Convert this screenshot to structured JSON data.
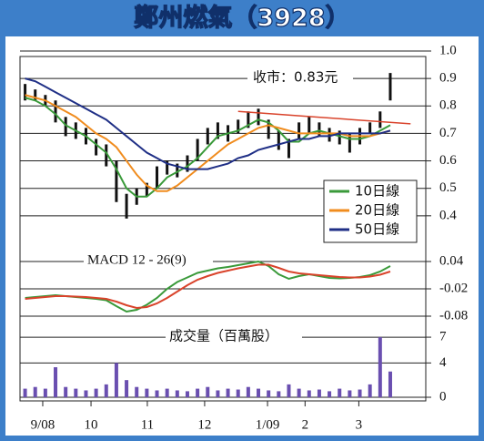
{
  "title": "鄭州燃氣（3928）",
  "chart_data": [
    {
      "type": "ohlc",
      "annotation": "收市：0.83元",
      "xlim": [
        -0.5,
        39.5
      ],
      "ylim": [
        0.28,
        1.0
      ],
      "yticks": [
        {
          "value": 1,
          "label": "1.0"
        },
        0.9,
        0.8,
        0.7,
        0.6,
        0.5,
        0.4
      ],
      "grid": true,
      "bar_color": "#111111",
      "x": [
        0,
        1,
        2,
        3,
        4,
        5,
        6,
        7,
        8,
        9,
        10,
        11,
        12,
        13,
        14,
        15,
        16,
        17,
        18,
        19,
        20,
        21,
        22,
        23,
        24,
        25,
        26,
        27,
        28,
        29,
        30,
        31,
        32,
        33,
        34,
        35,
        36
      ],
      "high": [
        0.88,
        0.86,
        0.84,
        0.82,
        0.76,
        0.74,
        0.72,
        0.68,
        0.66,
        0.6,
        0.48,
        0.5,
        0.52,
        0.58,
        0.6,
        0.59,
        0.62,
        0.68,
        0.72,
        0.74,
        0.73,
        0.75,
        0.78,
        0.79,
        0.75,
        0.71,
        0.68,
        0.74,
        0.76,
        0.74,
        0.72,
        0.71,
        0.7,
        0.72,
        0.74,
        0.78,
        0.92
      ],
      "low": [
        0.82,
        0.82,
        0.8,
        0.74,
        0.69,
        0.68,
        0.66,
        0.62,
        0.58,
        0.45,
        0.39,
        0.44,
        0.47,
        0.5,
        0.55,
        0.54,
        0.56,
        0.6,
        0.66,
        0.68,
        0.67,
        0.7,
        0.72,
        0.73,
        0.68,
        0.64,
        0.61,
        0.68,
        0.7,
        0.69,
        0.67,
        0.66,
        0.63,
        0.66,
        0.7,
        0.72,
        0.82
      ],
      "trendline": {
        "x": [
          21,
          38
        ],
        "y": [
          0.78,
          0.735
        ],
        "color": "#d9432b"
      },
      "legend": "lower right",
      "series": [
        {
          "name": "10日線",
          "color": "#3a9a3a",
          "values": [
            0.83,
            0.82,
            0.8,
            0.77,
            0.73,
            0.71,
            0.69,
            0.66,
            0.63,
            0.57,
            0.5,
            0.47,
            0.47,
            0.5,
            0.54,
            0.56,
            0.58,
            0.61,
            0.65,
            0.69,
            0.7,
            0.71,
            0.73,
            0.75,
            0.74,
            0.71,
            0.67,
            0.67,
            0.7,
            0.71,
            0.7,
            0.69,
            0.68,
            0.68,
            0.69,
            0.71,
            0.73
          ]
        },
        {
          "name": "20日線",
          "color": "#f08c1e",
          "values": [
            0.84,
            0.83,
            0.82,
            0.8,
            0.78,
            0.76,
            0.73,
            0.7,
            0.68,
            0.65,
            0.6,
            0.55,
            0.51,
            0.49,
            0.49,
            0.51,
            0.54,
            0.57,
            0.6,
            0.63,
            0.66,
            0.68,
            0.7,
            0.72,
            0.73,
            0.72,
            0.71,
            0.7,
            0.7,
            0.7,
            0.7,
            0.7,
            0.69,
            0.69,
            0.69,
            0.7,
            0.71
          ]
        },
        {
          "name": "50日線",
          "color": "#1f2f86",
          "values": [
            0.9,
            0.89,
            0.87,
            0.85,
            0.83,
            0.81,
            0.79,
            0.77,
            0.75,
            0.72,
            0.69,
            0.66,
            0.63,
            0.61,
            0.59,
            0.58,
            0.57,
            0.57,
            0.57,
            0.58,
            0.59,
            0.61,
            0.62,
            0.64,
            0.65,
            0.66,
            0.67,
            0.68,
            0.68,
            0.69,
            0.69,
            0.7,
            0.7,
            0.7,
            0.7,
            0.7,
            0.71
          ]
        }
      ]
    },
    {
      "type": "line",
      "title": "MACD 12 - 26(9)",
      "xlim": [
        -0.5,
        39.5
      ],
      "ylim": [
        -0.094,
        0.066
      ],
      "yticks": [
        0.04,
        -0.02,
        -0.08
      ],
      "grid": true,
      "x": [
        0,
        1,
        2,
        3,
        4,
        5,
        6,
        7,
        8,
        9,
        10,
        11,
        12,
        13,
        14,
        15,
        16,
        17,
        18,
        19,
        20,
        21,
        22,
        23,
        24,
        25,
        26,
        27,
        28,
        29,
        30,
        31,
        32,
        33,
        34,
        35,
        36
      ],
      "series": [
        {
          "color": "#3a9a3a",
          "values": [
            -0.04,
            -0.038,
            -0.036,
            -0.034,
            -0.036,
            -0.038,
            -0.04,
            -0.042,
            -0.045,
            -0.058,
            -0.07,
            -0.066,
            -0.055,
            -0.04,
            -0.02,
            -0.005,
            0.005,
            0.015,
            0.02,
            0.025,
            0.028,
            0.032,
            0.036,
            0.04,
            0.03,
            0.012,
            0.002,
            0.008,
            0.012,
            0.008,
            0.004,
            0.003,
            0.004,
            0.006,
            0.01,
            0.018,
            0.03
          ]
        },
        {
          "color": "#d9432b",
          "values": [
            -0.042,
            -0.04,
            -0.038,
            -0.036,
            -0.036,
            -0.037,
            -0.038,
            -0.04,
            -0.042,
            -0.048,
            -0.056,
            -0.062,
            -0.06,
            -0.052,
            -0.04,
            -0.026,
            -0.012,
            0,
            0.008,
            0.015,
            0.02,
            0.025,
            0.029,
            0.033,
            0.033,
            0.026,
            0.018,
            0.014,
            0.012,
            0.01,
            0.008,
            0.006,
            0.005,
            0.005,
            0.007,
            0.011,
            0.018
          ]
        }
      ]
    },
    {
      "type": "bar",
      "title": "成交量（百萬股）",
      "xlim": [
        -0.5,
        39.5
      ],
      "ylim": [
        0,
        8.6
      ],
      "yticks": [
        7,
        4,
        0
      ],
      "grid": true,
      "color": "#6a4fb0",
      "xticks": [
        {
          "value": 1.74,
          "label": "9/08"
        },
        {
          "value": 6.5,
          "label": "10"
        },
        {
          "value": 12.05,
          "label": "11"
        },
        {
          "value": 17.7,
          "label": "12"
        },
        {
          "value": 23.9,
          "label": "1/09"
        },
        {
          "value": 27.6,
          "label": "2"
        },
        {
          "value": 32.9,
          "label": "3"
        }
      ],
      "x": [
        0,
        1,
        2,
        3,
        4,
        5,
        6,
        7,
        8,
        9,
        10,
        11,
        12,
        13,
        14,
        15,
        16,
        17,
        18,
        19,
        20,
        21,
        22,
        23,
        24,
        25,
        26,
        27,
        28,
        29,
        30,
        31,
        32,
        33,
        34,
        35,
        36
      ],
      "values": [
        1,
        1.2,
        1,
        3.5,
        1.2,
        1,
        0.8,
        1,
        1.5,
        4,
        2,
        1.2,
        1,
        0.8,
        1,
        0.8,
        0.7,
        1,
        1.2,
        0.8,
        1,
        0.9,
        1.2,
        1,
        0.8,
        0.7,
        1.5,
        1,
        0.8,
        0.9,
        0.7,
        1,
        0.8,
        0.9,
        1.5,
        7,
        3
      ]
    }
  ]
}
